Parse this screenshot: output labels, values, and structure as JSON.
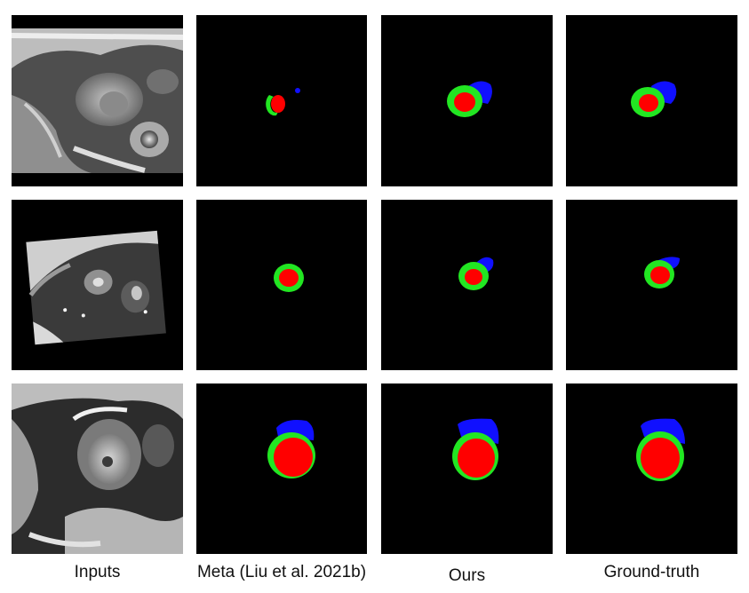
{
  "columns": [
    {
      "label": "Inputs"
    },
    {
      "label": "Meta (Liu et al. 2021b)"
    },
    {
      "label": "Ours"
    },
    {
      "label": "Ground-truth"
    }
  ],
  "colors": {
    "background": "#000000",
    "class_1": "#ff0000",
    "class_2": "#22e622",
    "class_3": "#1010ff",
    "page": "#ffffff"
  }
}
